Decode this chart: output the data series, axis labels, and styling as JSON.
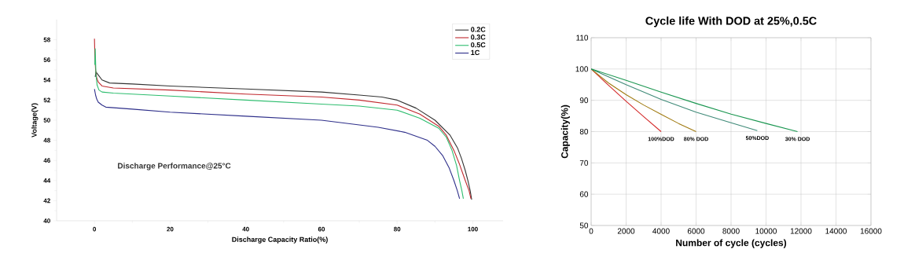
{
  "chart_data": [
    {
      "type": "line",
      "xlabel": "Discharge Capacity Ratio(%)",
      "ylabel": "Voltage(V)",
      "annotations": [
        "Discharge Performance@25°C"
      ],
      "xlim": [
        -10,
        108
      ],
      "ylim": [
        40,
        60
      ],
      "xticks": [
        0,
        20,
        40,
        60,
        80,
        100
      ],
      "yticks": [
        40,
        42,
        44,
        46,
        48,
        50,
        52,
        54,
        56,
        58
      ],
      "grid": false,
      "legend": "top right",
      "series": [
        {
          "name": "0.2C",
          "color": "#333333",
          "x": [
            0.2,
            0.4,
            1,
            2,
            4,
            10,
            20,
            40,
            60,
            70,
            76,
            80,
            85,
            90,
            94,
            96,
            97,
            98,
            98.7,
            99.3,
            99.7
          ],
          "values": [
            54.3,
            54.8,
            54.5,
            54.0,
            53.7,
            53.6,
            53.4,
            53.1,
            52.8,
            52.5,
            52.3,
            52.0,
            51.2,
            50.0,
            48.5,
            47.2,
            46.2,
            45.0,
            44.0,
            43.0,
            42.1
          ]
        },
        {
          "name": "0.3C",
          "color": "#c0282e",
          "x": [
            0,
            0.1,
            0.3,
            0.6,
            1,
            2,
            5,
            20,
            40,
            60,
            70,
            80,
            86,
            91,
            93,
            95,
            96.5,
            98,
            99,
            99.5
          ],
          "values": [
            58.1,
            56.5,
            55.0,
            54.2,
            53.8,
            53.4,
            53.2,
            53.0,
            52.6,
            52.3,
            52.0,
            51.5,
            50.6,
            49.4,
            48.5,
            47.0,
            45.6,
            44.0,
            43.0,
            42.2
          ]
        },
        {
          "name": "0.5C",
          "color": "#2dbd6e",
          "x": [
            0.1,
            0.2,
            0.4,
            0.7,
            1.2,
            2,
            5,
            20,
            40,
            60,
            70,
            80,
            86,
            91,
            93,
            94.5,
            95.7,
            96.5,
            97.1,
            97.5
          ],
          "values": [
            55.5,
            57.1,
            54.5,
            53.5,
            53.0,
            52.8,
            52.7,
            52.4,
            52.0,
            51.6,
            51.4,
            51.0,
            50.2,
            49.2,
            48.3,
            47.0,
            45.5,
            44.0,
            43.0,
            42.2
          ]
        },
        {
          "name": "1C",
          "color": "#2e2f8a",
          "x": [
            0,
            0.3,
            0.6,
            1,
            2,
            3,
            10,
            20,
            40,
            60,
            75,
            82,
            88,
            90,
            92,
            93.7,
            95,
            95.9,
            96.5
          ],
          "values": [
            53.1,
            52.5,
            52.1,
            51.8,
            51.5,
            51.3,
            51.1,
            50.8,
            50.4,
            50.0,
            49.3,
            48.8,
            48.0,
            47.4,
            46.5,
            45.3,
            44.0,
            43.0,
            42.2
          ]
        }
      ]
    },
    {
      "type": "line",
      "title": "Cycle life With DOD at 25%,0.5C",
      "xlabel": "Number of cycle (cycles)",
      "ylabel": "Capacity(%)",
      "xlim": [
        0,
        16000
      ],
      "ylim": [
        50,
        110
      ],
      "xticks": [
        0,
        2000,
        4000,
        6000,
        8000,
        10000,
        12000,
        14000,
        16000
      ],
      "yticks": [
        50,
        60,
        70,
        80,
        90,
        100,
        110
      ],
      "grid": true,
      "series": [
        {
          "name": "100%DOD",
          "color": "#d42a2a",
          "x": [
            0,
            1000,
            2000,
            3000,
            4000
          ],
          "values": [
            100,
            94.8,
            89.7,
            84.8,
            80
          ]
        },
        {
          "name": "80% DOD",
          "color": "#a07a10",
          "x": [
            0,
            1000,
            2000,
            3000,
            4000,
            5000,
            6000
          ],
          "values": [
            100,
            95.5,
            91.8,
            88.5,
            85.5,
            82.6,
            80
          ]
        },
        {
          "name": "50%DOD",
          "color": "#3f8a78",
          "x": [
            0,
            2000,
            4000,
            6000,
            8000,
            9500
          ],
          "values": [
            100,
            95.0,
            90.3,
            86.2,
            82.8,
            80.3
          ]
        },
        {
          "name": "30% DOD",
          "color": "#1a9650",
          "x": [
            0,
            2000,
            4000,
            6000,
            8000,
            10000,
            11800
          ],
          "values": [
            100,
            96.4,
            92.6,
            89.0,
            85.6,
            82.6,
            80
          ]
        }
      ]
    }
  ]
}
